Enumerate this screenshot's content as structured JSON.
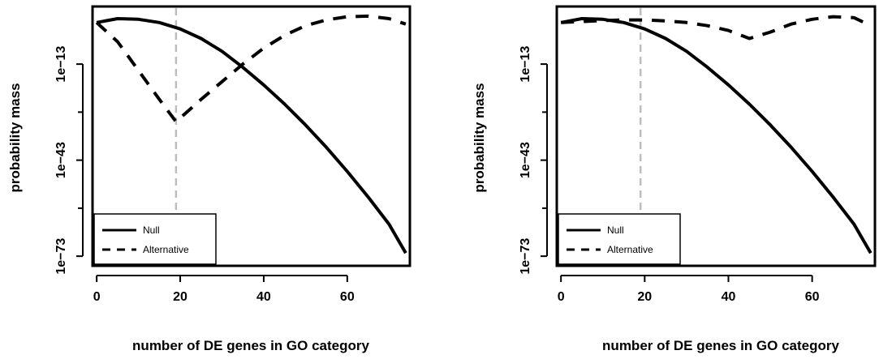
{
  "chart_data": [
    {
      "type": "line",
      "xlabel": "number of DE genes in GO category",
      "ylabel": "probability mass",
      "xlim": [
        -1,
        75
      ],
      "ylim_log10": [
        -76,
        5
      ],
      "x_ticks": [
        0,
        20,
        40,
        60
      ],
      "x_tick_labels": [
        "0",
        "20",
        "40",
        "60"
      ],
      "y_ticks_log10": [
        -13,
        -43,
        -73
      ],
      "y_tick_labels": [
        "1e−13",
        "1e−43",
        "1e−73"
      ],
      "y_minor_ticks_log10": [
        -28,
        -58
      ],
      "vline_x": 19,
      "vline_color": "#bdbdbd",
      "legend_position": "bottom-left",
      "grid": false,
      "series": [
        {
          "name": "Null",
          "style": "solid",
          "x": [
            0,
            5,
            10,
            15,
            20,
            25,
            30,
            35,
            40,
            45,
            50,
            55,
            60,
            65,
            70,
            74
          ],
          "log10_y": [
            0,
            1.2,
            1.0,
            0.0,
            -2.0,
            -5.0,
            -9.0,
            -14.0,
            -19.5,
            -25.5,
            -32.0,
            -39.0,
            -46.5,
            -54.5,
            -63.0,
            -72.0
          ]
        },
        {
          "name": "Alternative",
          "style": "dashed",
          "x": [
            0,
            5,
            10,
            15,
            19,
            25,
            30,
            35,
            40,
            45,
            50,
            55,
            60,
            65,
            70,
            74
          ],
          "log10_y": [
            0,
            -6.0,
            -15.0,
            -24.0,
            -31.0,
            -24.0,
            -18.5,
            -13.0,
            -8.0,
            -4.0,
            -1.0,
            0.8,
            1.8,
            2.0,
            1.2,
            -0.5
          ]
        }
      ]
    },
    {
      "type": "line",
      "xlabel": "number of DE genes in GO category",
      "ylabel": "probability mass",
      "xlim": [
        -1,
        75
      ],
      "ylim_log10": [
        -76,
        5
      ],
      "x_ticks": [
        0,
        20,
        40,
        60
      ],
      "x_tick_labels": [
        "0",
        "20",
        "40",
        "60"
      ],
      "y_ticks_log10": [
        -13,
        -43,
        -73
      ],
      "y_tick_labels": [
        "1e−13",
        "1e−43",
        "1e−73"
      ],
      "y_minor_ticks_log10": [
        -28,
        -58
      ],
      "vline_x": 19,
      "vline_color": "#bdbdbd",
      "legend_position": "bottom-left",
      "grid": false,
      "series": [
        {
          "name": "Null",
          "style": "solid",
          "x": [
            0,
            5,
            10,
            15,
            20,
            25,
            30,
            35,
            40,
            45,
            50,
            55,
            60,
            65,
            70,
            74
          ],
          "log10_y": [
            0,
            1.2,
            1.0,
            0.0,
            -2.0,
            -5.0,
            -9.0,
            -14.0,
            -19.5,
            -25.5,
            -32.0,
            -39.0,
            -46.5,
            -54.5,
            -63.0,
            -72.0
          ]
        },
        {
          "name": "Alternative",
          "style": "dashed",
          "x": [
            0,
            5,
            10,
            15,
            20,
            25,
            30,
            35,
            40,
            45,
            50,
            55,
            60,
            65,
            70,
            74
          ],
          "log10_y": [
            0,
            0.3,
            0.6,
            0.8,
            0.8,
            0.5,
            0.0,
            -1.0,
            -2.5,
            -5.0,
            -3.0,
            -0.5,
            1.0,
            1.8,
            1.5,
            -1.0
          ]
        }
      ]
    }
  ]
}
